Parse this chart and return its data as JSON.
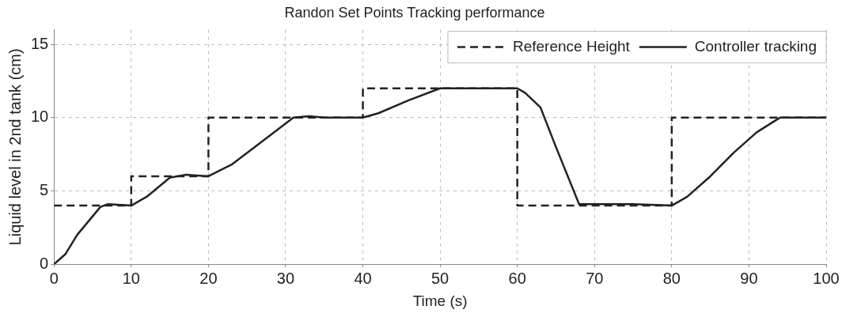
{
  "chart_data": {
    "type": "line",
    "title": "Randon Set Points Tracking performance",
    "xlabel": "Time (s)",
    "ylabel": "Liquid level in 2nd tank (cm)",
    "xlim": [
      0,
      100
    ],
    "xticks": [
      0,
      10,
      20,
      30,
      40,
      50,
      60,
      70,
      80,
      90,
      100
    ],
    "ylim": [
      0,
      16
    ],
    "yticks": [
      0,
      5,
      10,
      15
    ],
    "grid": true,
    "legend": "top right",
    "marker": "none",
    "series": [
      {
        "name": "Reference Height",
        "type": "step",
        "color": "#222222",
        "line_style": "dashed",
        "x": [
          0,
          10,
          20,
          40,
          60,
          80,
          100
        ],
        "values": [
          4,
          6,
          10,
          12,
          4,
          10,
          10
        ]
      },
      {
        "name": "Controller tracking",
        "type": "line",
        "color": "#222222",
        "line_style": "solid",
        "x": [
          0,
          1.5,
          3,
          6,
          7,
          10,
          12,
          15,
          17,
          20,
          23,
          26,
          31,
          33,
          35,
          40,
          42,
          46,
          50,
          60,
          61,
          63,
          65,
          68,
          70,
          75,
          80,
          82,
          85,
          88,
          91,
          94,
          100
        ],
        "values": [
          0,
          0.7,
          2,
          3.9,
          4.1,
          4,
          4.6,
          5.9,
          6.1,
          6,
          6.8,
          8,
          10,
          10.1,
          10,
          10,
          10.3,
          11.2,
          12,
          12,
          11.7,
          10.7,
          8,
          4.1,
          4.1,
          4.1,
          4,
          4.6,
          6,
          7.6,
          9,
          10,
          10
        ]
      }
    ]
  }
}
